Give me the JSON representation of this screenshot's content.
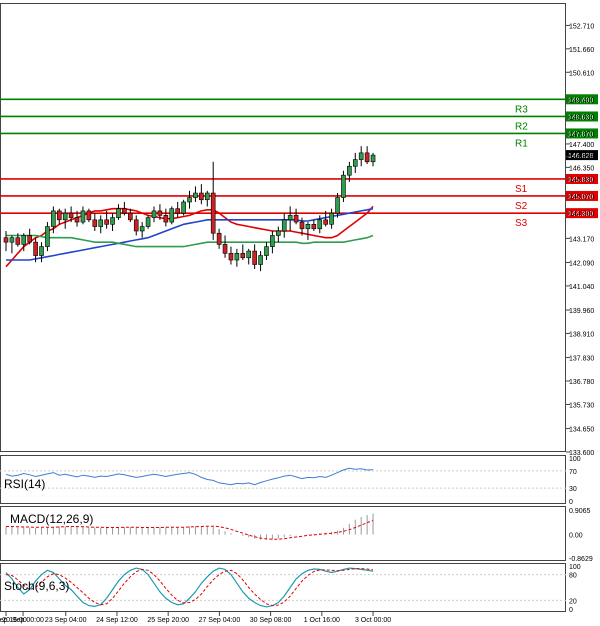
{
  "chart_data": [
    {
      "type": "candlestick",
      "panel": "price",
      "y_ticks": [
        "152.710",
        "151.660",
        "150.610",
        "149.400",
        "148.630",
        "147.870",
        "147.400",
        "146.828",
        "146.350",
        "145.830",
        "145.070",
        "144.300",
        "143.170",
        "142.090",
        "141.040",
        "139.960",
        "138.910",
        "137.830",
        "136.780",
        "135.730",
        "134.650",
        "133.600"
      ],
      "ylim": [
        133.6,
        153.4
      ],
      "x_ticks": [
        {
          "label": "19 Sep 16:00",
          "t": 0
        },
        {
          "label": "20 Sep 00:00",
          "t": 2
        },
        {
          "label": "23 Sep 04:00",
          "t": 7
        },
        {
          "label": "24 Sep 12:00",
          "t": 13
        },
        {
          "label": "25 Sep 20:00",
          "t": 19
        },
        {
          "label": "27 Sep 04:00",
          "t": 25
        },
        {
          "label": "30 Sep 08:00",
          "t": 31
        },
        {
          "label": "1 Oct 16:00",
          "t": 37
        },
        {
          "label": "3 Oct 00:00",
          "t": 43
        }
      ],
      "levels": [
        {
          "name": "R3",
          "value": 149.4,
          "label": "149.400",
          "color": "#008000"
        },
        {
          "name": "R2",
          "value": 148.63,
          "label": "148.630",
          "color": "#008000"
        },
        {
          "name": "R1",
          "value": 147.87,
          "label": "147.870",
          "color": "#008000"
        },
        {
          "name": "S1",
          "value": 145.83,
          "label": "145.830",
          "color": "#e00000"
        },
        {
          "name": "S2",
          "value": 145.07,
          "label": "145.070",
          "color": "#e00000"
        },
        {
          "name": "S3",
          "value": 144.3,
          "label": "144.300",
          "color": "#e00000"
        }
      ],
      "current_price": "146.828",
      "candles": [
        [
          143.2,
          143.5,
          142.6,
          143.0
        ],
        [
          143.0,
          143.3,
          142.5,
          143.2
        ],
        [
          143.2,
          143.4,
          142.8,
          142.9
        ],
        [
          142.9,
          143.4,
          142.6,
          143.3
        ],
        [
          143.3,
          143.6,
          142.9,
          143.0
        ],
        [
          143.0,
          143.2,
          142.1,
          142.4
        ],
        [
          142.4,
          143.0,
          142.1,
          142.8
        ],
        [
          142.8,
          143.9,
          142.6,
          143.7
        ],
        [
          143.7,
          144.6,
          143.4,
          144.4
        ],
        [
          144.4,
          144.5,
          143.8,
          144.0
        ],
        [
          144.0,
          144.5,
          143.6,
          144.3
        ],
        [
          144.3,
          144.6,
          143.9,
          144.1
        ],
        [
          144.1,
          144.4,
          143.7,
          143.9
        ],
        [
          143.9,
          144.6,
          143.8,
          144.4
        ],
        [
          144.4,
          144.5,
          143.9,
          144.0
        ],
        [
          144.0,
          144.3,
          143.5,
          143.7
        ],
        [
          143.7,
          144.2,
          143.4,
          144.0
        ],
        [
          144.0,
          144.4,
          143.6,
          143.8
        ],
        [
          143.8,
          144.3,
          143.5,
          144.1
        ],
        [
          144.1,
          144.7,
          144.0,
          144.5
        ],
        [
          144.5,
          144.8,
          144.2,
          144.3
        ],
        [
          144.3,
          144.5,
          143.9,
          144.0
        ],
        [
          144.0,
          144.2,
          143.3,
          143.5
        ],
        [
          143.5,
          143.9,
          143.2,
          143.7
        ],
        [
          143.7,
          144.2,
          143.6,
          144.1
        ],
        [
          144.1,
          144.6,
          143.9,
          144.4
        ],
        [
          144.4,
          144.7,
          144.0,
          144.2
        ],
        [
          144.2,
          144.5,
          143.7,
          143.9
        ],
        [
          143.9,
          144.6,
          143.8,
          144.5
        ],
        [
          144.5,
          144.8,
          144.1,
          144.3
        ],
        [
          144.3,
          144.9,
          144.2,
          144.8
        ],
        [
          144.8,
          145.3,
          144.5,
          145.0
        ],
        [
          145.0,
          145.5,
          144.8,
          145.2
        ],
        [
          145.2,
          145.6,
          144.7,
          144.9
        ],
        [
          144.9,
          145.3,
          144.6,
          145.2
        ],
        [
          145.2,
          146.6,
          143.1,
          143.4
        ],
        [
          143.4,
          143.6,
          142.7,
          142.9
        ],
        [
          142.9,
          143.3,
          142.3,
          142.5
        ],
        [
          142.5,
          142.8,
          142.0,
          142.2
        ],
        [
          142.2,
          142.7,
          141.9,
          142.5
        ],
        [
          142.5,
          142.9,
          142.2,
          142.3
        ],
        [
          142.3,
          142.7,
          142.0,
          142.6
        ],
        [
          142.6,
          142.9,
          141.8,
          142.0
        ],
        [
          142.0,
          142.6,
          141.7,
          142.4
        ],
        [
          142.4,
          143.0,
          142.2,
          142.8
        ],
        [
          142.8,
          143.5,
          142.5,
          143.3
        ],
        [
          143.3,
          143.7,
          143.0,
          143.5
        ],
        [
          143.5,
          144.3,
          143.2,
          144.0
        ],
        [
          144.0,
          144.6,
          143.5,
          144.2
        ],
        [
          144.2,
          144.5,
          143.8,
          143.9
        ],
        [
          143.9,
          144.1,
          143.3,
          143.6
        ],
        [
          143.6,
          143.9,
          143.1,
          143.8
        ],
        [
          143.8,
          144.0,
          143.5,
          143.6
        ],
        [
          143.6,
          144.2,
          143.4,
          144.0
        ],
        [
          144.0,
          144.4,
          143.7,
          143.8
        ],
        [
          143.8,
          144.5,
          143.6,
          144.3
        ],
        [
          144.3,
          145.2,
          144.1,
          145.0
        ],
        [
          145.0,
          146.2,
          144.8,
          146.0
        ],
        [
          146.0,
          146.6,
          145.7,
          146.4
        ],
        [
          146.4,
          147.0,
          146.1,
          146.7
        ],
        [
          146.7,
          147.3,
          146.4,
          147.0
        ],
        [
          147.0,
          147.3,
          146.5,
          146.6
        ],
        [
          146.6,
          147.0,
          146.4,
          146.9
        ]
      ],
      "moving_averages": [
        {
          "color": "#e00000",
          "values": [
            141.9,
            142.2,
            142.5,
            142.8,
            143.0,
            143.2,
            143.3,
            143.5,
            143.6,
            143.8,
            143.9,
            144.0,
            144.1,
            144.2,
            144.3,
            144.4,
            144.4,
            144.45,
            144.5,
            144.5,
            144.5,
            144.45,
            144.4,
            144.3,
            144.2,
            144.15,
            144.1,
            144.05,
            144.05,
            144.1,
            144.15,
            144.2,
            144.3,
            144.4,
            144.45,
            144.45,
            144.3,
            144.1,
            143.9,
            143.8,
            143.75,
            143.7,
            143.65,
            143.6,
            143.55,
            143.5,
            143.5,
            143.5,
            143.5,
            143.45,
            143.4,
            143.35,
            143.3,
            143.25,
            143.2,
            143.2,
            143.3,
            143.5,
            143.7,
            143.9,
            144.1,
            144.3,
            144.6
          ]
        },
        {
          "color": "#2244cc",
          "values": [
            142.2,
            142.2,
            142.2,
            142.2,
            142.2,
            142.25,
            142.3,
            142.35,
            142.4,
            142.45,
            142.5,
            142.55,
            142.6,
            142.65,
            142.7,
            142.75,
            142.8,
            142.85,
            142.9,
            142.95,
            143.0,
            143.05,
            143.1,
            143.15,
            143.2,
            143.3,
            143.4,
            143.5,
            143.6,
            143.7,
            143.8,
            143.85,
            143.9,
            143.95,
            144.0,
            144.0,
            144.0,
            144.0,
            144.0,
            144.0,
            144.0,
            144.0,
            144.0,
            144.0,
            144.0,
            144.0,
            144.0,
            144.0,
            144.0,
            144.0,
            143.95,
            143.95,
            144.0,
            144.05,
            144.1,
            144.15,
            144.2,
            144.25,
            144.3,
            144.35,
            144.4,
            144.45,
            144.5
          ]
        },
        {
          "color": "#2e9d4e",
          "values": [
            143.3,
            143.3,
            143.3,
            143.3,
            143.3,
            143.3,
            143.25,
            143.2,
            143.2,
            143.2,
            143.2,
            143.2,
            143.15,
            143.1,
            143.05,
            143.0,
            143.0,
            143.0,
            143.0,
            142.95,
            142.9,
            142.85,
            142.8,
            142.8,
            142.8,
            142.8,
            142.8,
            142.8,
            142.8,
            142.8,
            142.8,
            142.85,
            142.9,
            142.95,
            143.0,
            143.0,
            143.0,
            143.0,
            143.0,
            143.0,
            143.0,
            143.0,
            143.0,
            143.0,
            143.0,
            143.0,
            143.0,
            143.0,
            143.0,
            143.0,
            142.95,
            142.95,
            143.0,
            143.0,
            143.0,
            143.0,
            143.0,
            143.0,
            143.05,
            143.1,
            143.15,
            143.2,
            143.3
          ]
        }
      ]
    },
    {
      "type": "line",
      "panel": "rsi",
      "label": "RSI(14)",
      "y_ticks": [
        "100",
        "70",
        "30",
        "0"
      ],
      "ylim": [
        0,
        100
      ],
      "color": "#3a7fd5",
      "values": [
        62,
        58,
        60,
        64,
        61,
        57,
        60,
        63,
        66,
        60,
        62,
        59,
        56,
        60,
        58,
        55,
        58,
        57,
        60,
        63,
        61,
        58,
        55,
        57,
        60,
        62,
        60,
        57,
        60,
        62,
        64,
        66,
        62,
        55,
        50,
        48,
        42,
        40,
        38,
        41,
        40,
        42,
        38,
        43,
        47,
        51,
        54,
        58,
        60,
        56,
        52,
        55,
        54,
        57,
        55,
        60,
        66,
        72,
        76,
        74,
        75,
        72,
        73
      ]
    },
    {
      "type": "bar+line",
      "panel": "macd",
      "label": "MACD(12,26,9)",
      "y_ticks": [
        "0.9065",
        "0.00",
        "-0.8629"
      ],
      "ylim": [
        -0.8629,
        0.9065
      ],
      "histogram_color": "#999999",
      "signal_color": "#e00000",
      "histogram": [
        0.28,
        0.28,
        0.26,
        0.26,
        0.26,
        0.25,
        0.25,
        0.26,
        0.28,
        0.3,
        0.3,
        0.3,
        0.29,
        0.28,
        0.26,
        0.26,
        0.26,
        0.25,
        0.25,
        0.27,
        0.28,
        0.28,
        0.26,
        0.25,
        0.25,
        0.26,
        0.27,
        0.27,
        0.27,
        0.27,
        0.28,
        0.3,
        0.31,
        0.32,
        0.32,
        0.28,
        0.2,
        0.12,
        0.05,
        0.0,
        -0.05,
        -0.1,
        -0.15,
        -0.18,
        -0.19,
        -0.18,
        -0.15,
        -0.1,
        -0.05,
        -0.02,
        0.0,
        0.02,
        0.03,
        0.05,
        0.07,
        0.1,
        0.15,
        0.25,
        0.4,
        0.55,
        0.65,
        0.72,
        0.78
      ],
      "signal": [
        0.3,
        0.3,
        0.29,
        0.28,
        0.28,
        0.27,
        0.27,
        0.27,
        0.27,
        0.28,
        0.29,
        0.3,
        0.3,
        0.29,
        0.28,
        0.27,
        0.27,
        0.26,
        0.26,
        0.26,
        0.27,
        0.27,
        0.27,
        0.26,
        0.26,
        0.26,
        0.26,
        0.27,
        0.27,
        0.27,
        0.27,
        0.28,
        0.29,
        0.3,
        0.31,
        0.31,
        0.29,
        0.25,
        0.19,
        0.12,
        0.05,
        -0.02,
        -0.08,
        -0.13,
        -0.16,
        -0.17,
        -0.17,
        -0.15,
        -0.12,
        -0.09,
        -0.06,
        -0.03,
        -0.01,
        0.01,
        0.03,
        0.05,
        0.08,
        0.12,
        0.18,
        0.26,
        0.35,
        0.44,
        0.52
      ]
    },
    {
      "type": "line",
      "panel": "stochastic",
      "label": "Stoch(9,6,3)",
      "y_ticks": [
        "100",
        "80",
        "20",
        "0"
      ],
      "ylim": [
        0,
        100
      ],
      "main_color": "#1a9ab0",
      "signal_color": "#e00000",
      "main": [
        85,
        70,
        50,
        35,
        45,
        65,
        80,
        90,
        85,
        70,
        55,
        45,
        30,
        15,
        8,
        6,
        10,
        25,
        45,
        65,
        80,
        90,
        95,
        92,
        80,
        60,
        40,
        25,
        15,
        10,
        12,
        25,
        40,
        60,
        75,
        88,
        95,
        92,
        80,
        60,
        40,
        25,
        15,
        8,
        5,
        8,
        15,
        30,
        50,
        70,
        82,
        90,
        93,
        92,
        88,
        85,
        88,
        92,
        95,
        94,
        92,
        90,
        88
      ],
      "signal": [
        80,
        78,
        68,
        55,
        45,
        50,
        62,
        75,
        82,
        80,
        72,
        62,
        50,
        38,
        25,
        15,
        10,
        12,
        25,
        42,
        60,
        75,
        87,
        92,
        90,
        80,
        65,
        48,
        32,
        20,
        14,
        15,
        22,
        35,
        52,
        68,
        80,
        88,
        90,
        82,
        68,
        50,
        35,
        22,
        12,
        8,
        9,
        16,
        30,
        48,
        65,
        78,
        87,
        91,
        91,
        90,
        89,
        90,
        92,
        94,
        94,
        93,
        91
      ]
    }
  ]
}
